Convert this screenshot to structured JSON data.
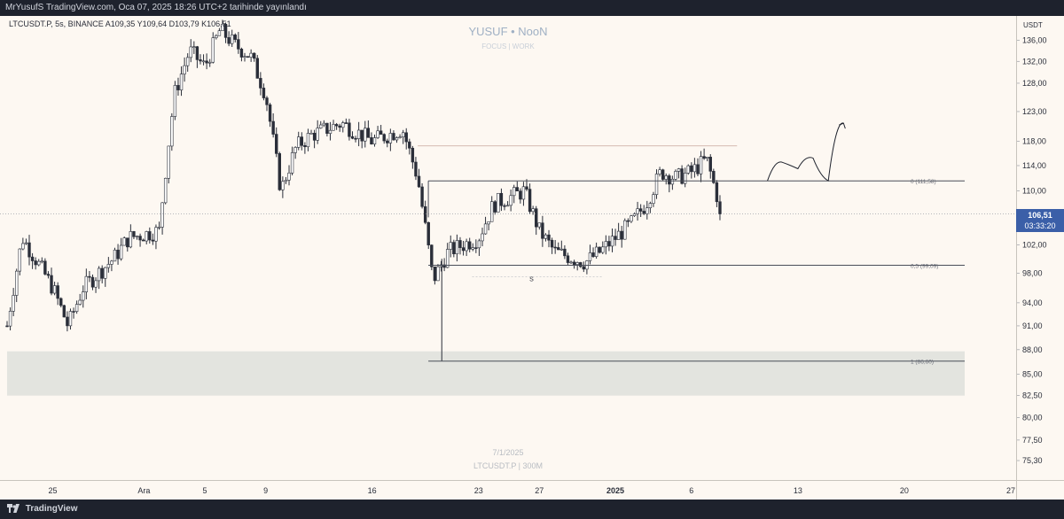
{
  "header": {
    "publisher": "MrYusufS TradingView.com, Oca 07, 2025 18:26 UTC+2 tarihinde yayınlandı",
    "symbol_info": "LTCUSDT.P, 5s, BINANCE  A109,35  Y109,64  D103,79  K106,51"
  },
  "watermark": {
    "title": "YUSUF • NooN",
    "subtitle": "FOCUS | WORK",
    "date": "7/1/2025",
    "symbol": "LTCUSDT.P | 300M"
  },
  "price_axis": {
    "unit": "USDT",
    "current_price": "106,51",
    "countdown": "03:33:20"
  },
  "footer": {
    "brand": "TradingView"
  },
  "colors": {
    "background": "#fdf8f2",
    "candle": "#2a2e39",
    "zone": "#e3e4df",
    "price_tag": "#3b5fa8",
    "resistance_line": "#c9a59a"
  },
  "chart_data": {
    "type": "candlestick",
    "y_scale": "log",
    "ylim": [
      74,
      140
    ],
    "xlim": [
      "2024-11-22",
      "2025-01-27"
    ],
    "y_ticks": [
      "136,00",
      "132,00",
      "128,00",
      "123,00",
      "118,00",
      "114,00",
      "110,00",
      "102,00",
      "98,00",
      "94,00",
      "91,00",
      "88,00",
      "85,00",
      "82,50",
      "80,00",
      "77,50",
      "75,30"
    ],
    "x_ticks": [
      {
        "date": "2024-11-25",
        "label": "25"
      },
      {
        "date": "2024-12-01",
        "label": "Ara"
      },
      {
        "date": "2024-12-05",
        "label": "5"
      },
      {
        "date": "2024-12-09",
        "label": "9"
      },
      {
        "date": "2024-12-16",
        "label": "16"
      },
      {
        "date": "2024-12-23",
        "label": "23"
      },
      {
        "date": "2024-12-27",
        "label": "27"
      },
      {
        "date": "2025-01-01",
        "label": "2025"
      },
      {
        "date": "2025-01-06",
        "label": "6"
      },
      {
        "date": "2025-01-13",
        "label": "13"
      },
      {
        "date": "2025-01-20",
        "label": "20"
      },
      {
        "date": "2025-01-27",
        "label": "27"
      }
    ],
    "price_path": [
      [
        "2024-11-22",
        91
      ],
      [
        "2024-11-23",
        103
      ],
      [
        "2024-11-25",
        96
      ],
      [
        "2024-11-26",
        91
      ],
      [
        "2024-11-27",
        96
      ],
      [
        "2024-11-29",
        100
      ],
      [
        "2024-11-30",
        103
      ],
      [
        "2024-12-02",
        104
      ],
      [
        "2024-12-03",
        126
      ],
      [
        "2024-12-04",
        134
      ],
      [
        "2024-12-05",
        131
      ],
      [
        "2024-12-06",
        138
      ],
      [
        "2024-12-07",
        135
      ],
      [
        "2024-12-08",
        133
      ],
      [
        "2024-12-09",
        126
      ],
      [
        "2024-12-10",
        110
      ],
      [
        "2024-12-11",
        117
      ],
      [
        "2024-12-12",
        119
      ],
      [
        "2024-12-14",
        121
      ],
      [
        "2024-12-16",
        118
      ],
      [
        "2024-12-18",
        120
      ],
      [
        "2024-12-19",
        112
      ],
      [
        "2024-12-20",
        97
      ],
      [
        "2024-12-21",
        101
      ],
      [
        "2024-12-23",
        103
      ],
      [
        "2024-12-24",
        108
      ],
      [
        "2024-12-26",
        110
      ],
      [
        "2024-12-27",
        104
      ],
      [
        "2024-12-28",
        101
      ],
      [
        "2024-12-30",
        99.5
      ],
      [
        "2024-12-31",
        101
      ],
      [
        "2025-01-02",
        105
      ],
      [
        "2025-01-03",
        108
      ],
      [
        "2025-01-04",
        113
      ],
      [
        "2025-01-05",
        112
      ],
      [
        "2025-01-06",
        113
      ],
      [
        "2025-01-07",
        115
      ],
      [
        "2025-01-08",
        106.51
      ]
    ],
    "horizontal_levels": [
      {
        "label": "0 (111,58)",
        "value": 111.58
      },
      {
        "label": "0,5 (99,09)",
        "value": 99.09
      },
      {
        "label": "1 (86,60)",
        "value": 86.6
      },
      {
        "label": "",
        "value": 117.2
      }
    ],
    "zone": {
      "from": 82.5,
      "to": 87.8
    },
    "marker": {
      "label": "S",
      "value": 97.5
    },
    "projection": [
      [
        "2025-01-11",
        111.6
      ],
      [
        "2025-01-12",
        114.5
      ],
      [
        "2025-01-13",
        113.5
      ],
      [
        "2025-01-14",
        115.2
      ],
      [
        "2025-01-15",
        111.6
      ],
      [
        "2025-01-16",
        121
      ]
    ]
  }
}
